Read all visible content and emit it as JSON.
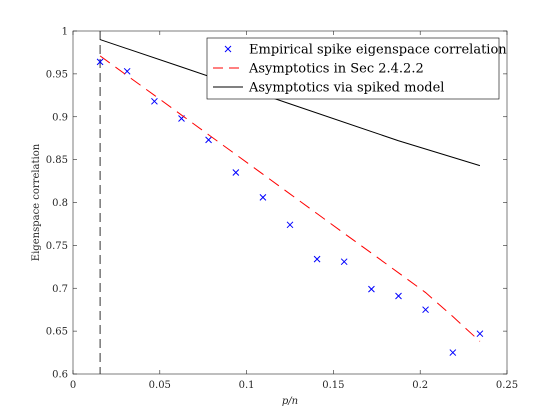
{
  "chart_data": {
    "type": "line",
    "title": "",
    "xlabel": "p/n",
    "ylabel": "Eigenspace correlation",
    "xlim": [
      0,
      0.25
    ],
    "ylim": [
      0.6,
      1.0
    ],
    "xticks": [
      0,
      0.05,
      0.1,
      0.15,
      0.2,
      0.25
    ],
    "xtick_labels": [
      "0",
      "0.05",
      "0.1",
      "0.15",
      "0.2",
      "0.25"
    ],
    "yticks": [
      0.6,
      0.65,
      0.7,
      0.75,
      0.8,
      0.85,
      0.9,
      0.95,
      1.0
    ],
    "ytick_labels": [
      "0.6",
      "0.65",
      "0.7",
      "0.75",
      "0.8",
      "0.85",
      "0.9",
      "0.95",
      "1"
    ],
    "grid": false,
    "legend_position": "top-right",
    "vertical_line_x": 0.0156,
    "series": [
      {
        "name": "Empirical spike eigenspace correlation",
        "style": "markers",
        "marker": "x",
        "color": "#0000ff",
        "x": [
          0.0156,
          0.0312,
          0.0469,
          0.0625,
          0.0781,
          0.0938,
          0.1094,
          0.125,
          0.1406,
          0.1562,
          0.1719,
          0.1875,
          0.2031,
          0.2188,
          0.2344
        ],
        "y": [
          0.964,
          0.953,
          0.918,
          0.898,
          0.873,
          0.835,
          0.806,
          0.774,
          0.734,
          0.731,
          0.699,
          0.691,
          0.675,
          0.625,
          0.647
        ]
      },
      {
        "name": "Asymptotics in Sec 2.4.2.2",
        "style": "dashed",
        "color": "#ff0000",
        "x": [
          0.0156,
          0.0312,
          0.0469,
          0.0625,
          0.0781,
          0.0938,
          0.1094,
          0.125,
          0.1406,
          0.1562,
          0.1719,
          0.1875,
          0.2031,
          0.2188,
          0.2344
        ],
        "y": [
          0.971,
          0.948,
          0.925,
          0.902,
          0.879,
          0.856,
          0.833,
          0.81,
          0.787,
          0.764,
          0.741,
          0.718,
          0.695,
          0.667,
          0.638
        ]
      },
      {
        "name": "Asymptotics via spiked model",
        "style": "solid",
        "color": "#000000",
        "x": [
          0.0156,
          0.0625,
          0.125,
          0.1875,
          0.2344
        ],
        "y": [
          0.99,
          0.958,
          0.915,
          0.872,
          0.843
        ]
      }
    ]
  }
}
